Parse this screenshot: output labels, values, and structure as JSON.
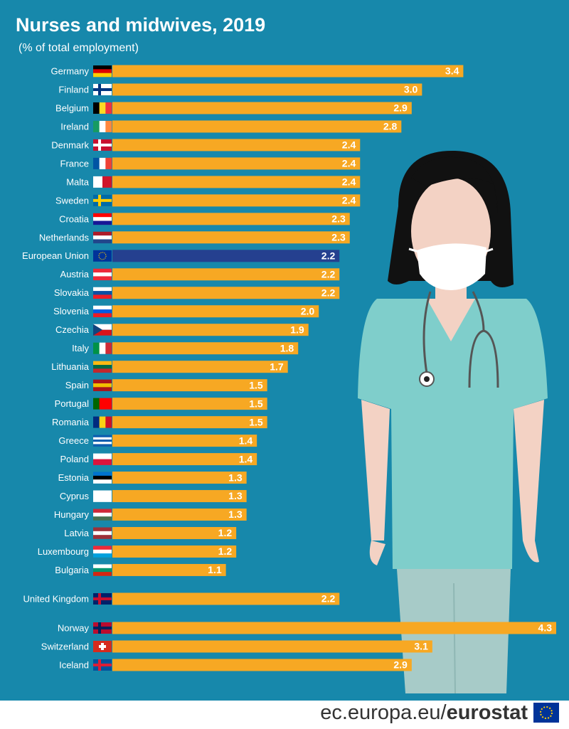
{
  "chart_data": {
    "type": "bar",
    "orientation": "horizontal",
    "title": "Nurses and midwives, 2019",
    "subtitle": "(% of total employment)",
    "categories": [
      "Germany",
      "Finland",
      "Belgium",
      "Ireland",
      "Denmark",
      "France",
      "Malta",
      "Sweden",
      "Croatia",
      "Netherlands",
      "European Union",
      "Austria",
      "Slovakia",
      "Slovenia",
      "Czechia",
      "Italy",
      "Lithuania",
      "Spain",
      "Portugal",
      "Romania",
      "Greece",
      "Poland",
      "Estonia",
      "Cyprus",
      "Hungary",
      "Latvia",
      "Luxembourg",
      "Bulgaria",
      "United Kingdom",
      "Norway",
      "Switzerland",
      "Iceland"
    ],
    "values": [
      3.4,
      3.0,
      2.9,
      2.8,
      2.4,
      2.4,
      2.4,
      2.4,
      2.3,
      2.3,
      2.2,
      2.2,
      2.2,
      2.0,
      1.9,
      1.8,
      1.7,
      1.5,
      1.5,
      1.5,
      1.4,
      1.4,
      1.3,
      1.3,
      1.3,
      1.2,
      1.2,
      1.1,
      2.2,
      4.3,
      3.1,
      2.9
    ],
    "value_labels": [
      "3.4",
      "3.0",
      "2.9",
      "2.8",
      "2.4",
      "2.4",
      "2.4",
      "2.4",
      "2.3",
      "2.3",
      "2.2",
      "2.2",
      "2.2",
      "2.0",
      "1.9",
      "1.8",
      "1.7",
      "1.5",
      "1.5",
      "1.5",
      "1.4",
      "1.4",
      "1.3",
      "1.3",
      "1.3",
      "1.2",
      "1.2",
      "1.1",
      "2.2",
      "4.3",
      "3.1",
      "2.9"
    ],
    "colors": [
      "#f7a823",
      "#f7a823",
      "#f7a823",
      "#f7a823",
      "#f7a823",
      "#f7a823",
      "#f7a823",
      "#f7a823",
      "#f7a823",
      "#f7a823",
      "#25408f",
      "#f7a823",
      "#f7a823",
      "#f7a823",
      "#f7a823",
      "#f7a823",
      "#f7a823",
      "#f7a823",
      "#f7a823",
      "#f7a823",
      "#f7a823",
      "#f7a823",
      "#f7a823",
      "#f7a823",
      "#f7a823",
      "#f7a823",
      "#f7a823",
      "#f7a823",
      "#f7a823",
      "#f7a823",
      "#f7a823",
      "#f7a823"
    ]
  },
  "footer": {
    "url": "ec.europa.eu/",
    "brand": "eurostat"
  }
}
